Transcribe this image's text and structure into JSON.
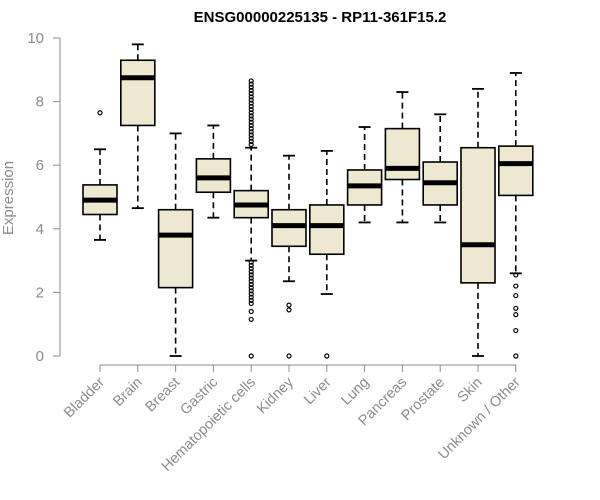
{
  "chart_data": {
    "type": "boxplot",
    "title": "ENSG00000225135 - RP11-361F15.2",
    "xlabel": "",
    "ylabel": "Expression",
    "ylim": [
      0,
      10
    ],
    "yticks": [
      0,
      2,
      4,
      6,
      8,
      10
    ],
    "grid": false,
    "categories": [
      "Bladder",
      "Brain",
      "Breast",
      "Gastric",
      "Hematopoietic cells",
      "Kidney",
      "Liver",
      "Lung",
      "Pancreas",
      "Prostate",
      "Skin",
      "Unknown / Other"
    ],
    "boxes": [
      {
        "name": "Bladder",
        "min": 3.65,
        "q1": 4.45,
        "median": 4.9,
        "q3": 5.38,
        "max": 6.5,
        "outliers": [
          7.65
        ]
      },
      {
        "name": "Brain",
        "min": 4.65,
        "q1": 7.25,
        "median": 8.75,
        "q3": 9.3,
        "max": 9.8,
        "outliers": []
      },
      {
        "name": "Breast",
        "min": 0.0,
        "q1": 2.15,
        "median": 3.8,
        "q3": 4.6,
        "max": 7.0,
        "outliers": []
      },
      {
        "name": "Gastric",
        "min": 4.35,
        "q1": 5.15,
        "median": 5.6,
        "q3": 6.2,
        "max": 7.25,
        "outliers": []
      },
      {
        "name": "Hematopoietic cells",
        "min": 3.0,
        "q1": 4.35,
        "median": 4.75,
        "q3": 5.2,
        "max": 6.55,
        "outliers": [
          8.65,
          8.55,
          8.45,
          8.35,
          8.25,
          8.15,
          8.05,
          7.95,
          7.85,
          7.75,
          7.65,
          7.55,
          7.45,
          7.35,
          7.25,
          7.15,
          7.05,
          6.95,
          6.85,
          6.75,
          6.65,
          2.95,
          2.85,
          2.75,
          2.65,
          2.55,
          2.45,
          2.35,
          2.25,
          2.15,
          2.05,
          1.95,
          1.85,
          1.75,
          1.65,
          1.4,
          1.15,
          0.0
        ]
      },
      {
        "name": "Kidney",
        "min": 2.35,
        "q1": 3.45,
        "median": 4.1,
        "q3": 4.6,
        "max": 6.3,
        "outliers": [
          1.6,
          1.45,
          0.0
        ]
      },
      {
        "name": "Liver",
        "min": 1.95,
        "q1": 3.2,
        "median": 4.1,
        "q3": 4.75,
        "max": 6.45,
        "outliers": [
          0.0
        ]
      },
      {
        "name": "Lung",
        "min": 4.2,
        "q1": 4.75,
        "median": 5.35,
        "q3": 5.85,
        "max": 7.2,
        "outliers": []
      },
      {
        "name": "Pancreas",
        "min": 4.2,
        "q1": 5.55,
        "median": 5.9,
        "q3": 7.15,
        "max": 8.3,
        "outliers": []
      },
      {
        "name": "Prostate",
        "min": 4.2,
        "q1": 4.75,
        "median": 5.45,
        "q3": 6.1,
        "max": 7.6,
        "outliers": []
      },
      {
        "name": "Skin",
        "min": 0.0,
        "q1": 2.3,
        "median": 3.5,
        "q3": 6.55,
        "max": 8.4,
        "outliers": []
      },
      {
        "name": "Unknown / Other",
        "min": 2.6,
        "q1": 5.05,
        "median": 6.05,
        "q3": 6.6,
        "max": 8.9,
        "outliers": [
          2.55,
          2.2,
          1.9,
          1.5,
          1.3,
          0.8,
          0.0
        ]
      }
    ],
    "colors": {
      "box_fill": "#ede8cf",
      "line": "#000000",
      "axis": "#8c8c8c"
    }
  }
}
